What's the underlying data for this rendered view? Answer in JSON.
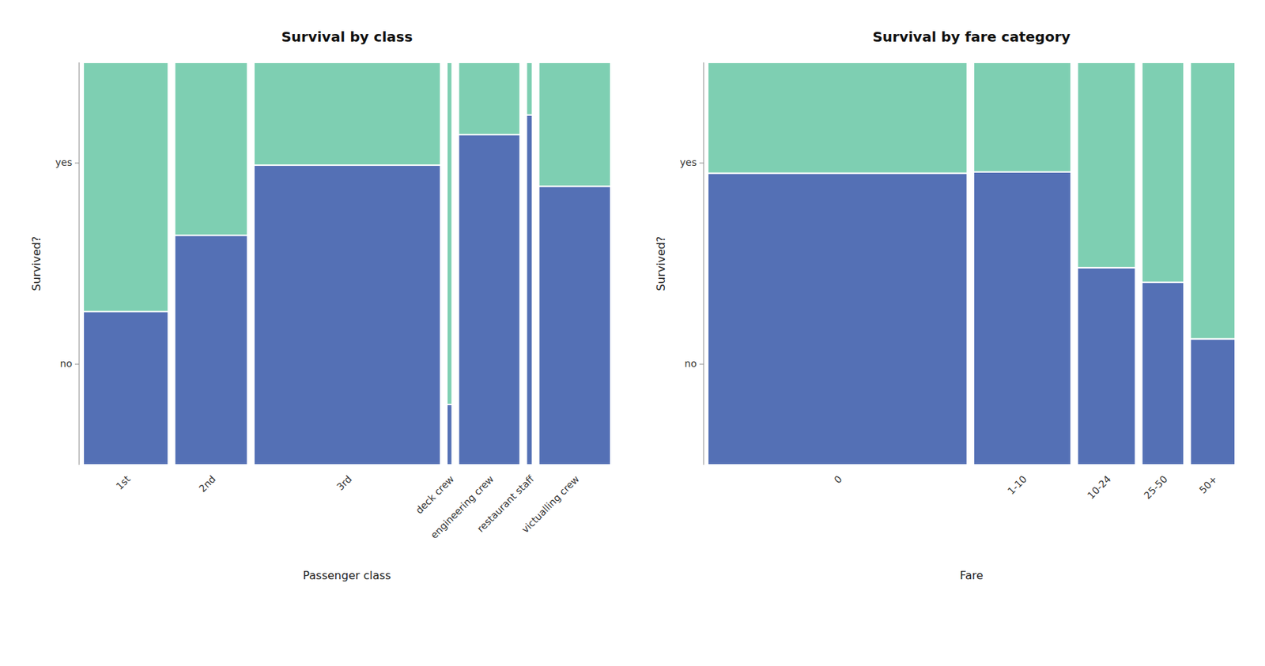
{
  "chart_data": [
    {
      "type": "bar",
      "stacked": true,
      "grid": false,
      "title": "Survival by class",
      "xlabel": "Passenger class",
      "ylabel": "Survived?",
      "categories": [
        "1st",
        "2nd",
        "3rd",
        "deck crew",
        "engineering crew",
        "restaurant staff",
        "victualling crew"
      ],
      "widths": [
        323,
        277,
        709,
        20,
        234,
        23,
        273
      ],
      "ylim": [
        0,
        1
      ],
      "yticks": [
        {
          "value": 0.25,
          "label": "no"
        },
        {
          "value": 0.75,
          "label": "yes"
        }
      ],
      "series": [
        {
          "color": "#5470b5",
          "values": [
            0.380805,
            0.570397,
            0.744711,
            0.15,
            0.820513,
            0.869565,
            0.692308
          ]
        },
        {
          "color": "#7ecfb2",
          "values": [
            0.619195,
            0.429603,
            0.255289,
            0.85,
            0.179487,
            0.130435,
            0.307692
          ]
        }
      ]
    },
    {
      "type": "bar",
      "stacked": true,
      "grid": false,
      "title": "Survival by fare category",
      "xlabel": "Fare",
      "ylabel": "Survived?",
      "categories": [
        "0",
        "1-10",
        "10-24",
        "25-50",
        "50+"
      ],
      "widths": [
        665,
        250,
        149,
        108,
        115
      ],
      "ylim": [
        0,
        1
      ],
      "yticks": [
        {
          "value": 0.25,
          "label": "no"
        },
        {
          "value": 0.75,
          "label": "yes"
        }
      ],
      "series": [
        {
          "color": "#5470b5",
          "values": [
            0.724812,
            0.728,
            0.489933,
            0.453704,
            0.313043
          ]
        },
        {
          "color": "#7ecfb2",
          "values": [
            0.275188,
            0.272,
            0.510067,
            0.546296,
            0.686957
          ]
        }
      ]
    }
  ]
}
